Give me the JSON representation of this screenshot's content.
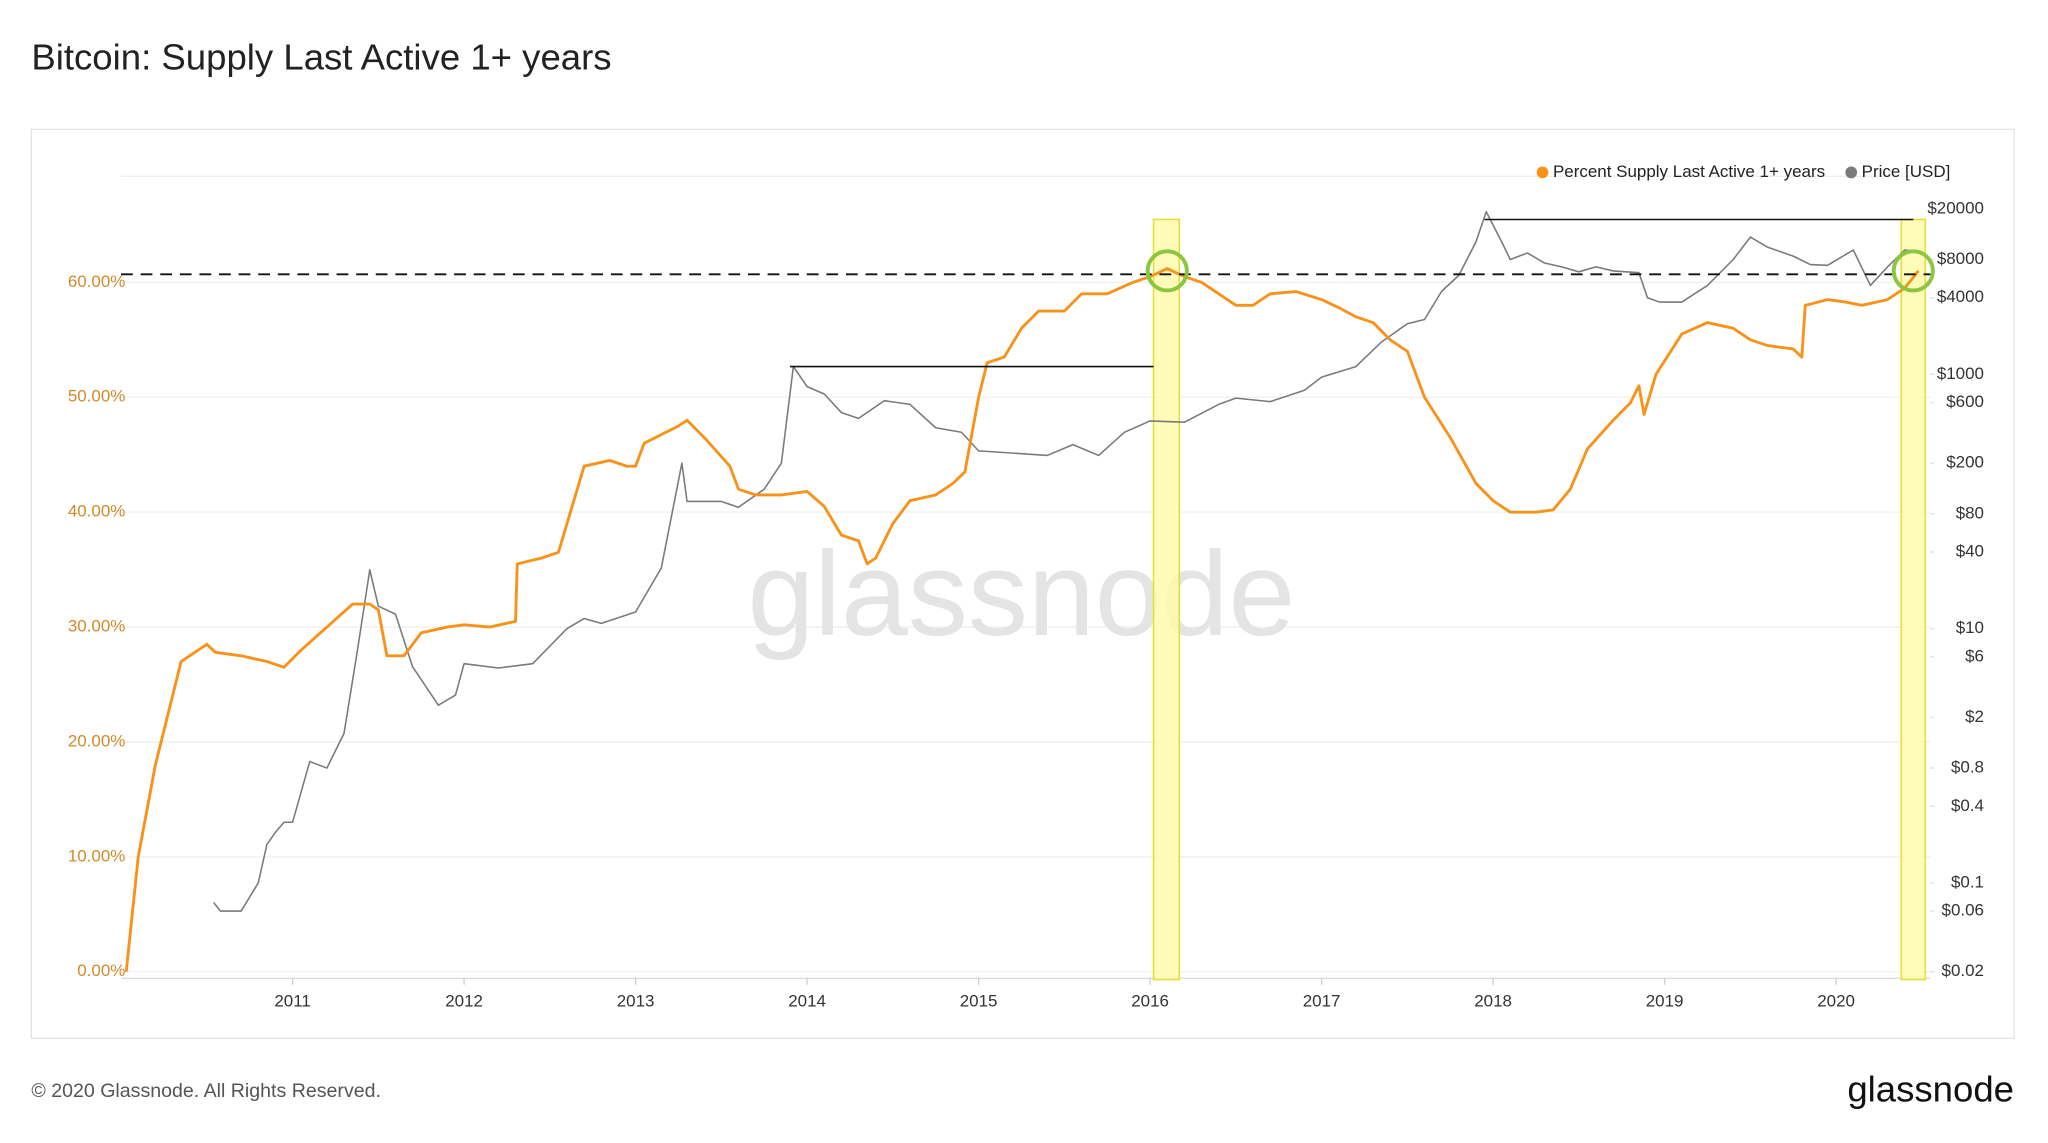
{
  "chart_data": {
    "type": "line",
    "title": "Bitcoin: Supply Last Active 1+ years",
    "watermark": "glassnode",
    "xlim": [
      2010,
      2020.55
    ],
    "xticks": [
      2011,
      2012,
      2013,
      2014,
      2015,
      2016,
      2017,
      2018,
      2019,
      2020
    ],
    "ylim": [
      0,
      69
    ],
    "yticks": [
      {
        "value": 0,
        "label": "0.00%"
      },
      {
        "value": 10,
        "label": "10.00%"
      },
      {
        "value": 20,
        "label": "20.00%"
      },
      {
        "value": 30,
        "label": "30.00%"
      },
      {
        "value": 40,
        "label": "40.00%"
      },
      {
        "value": 50,
        "label": "50.00%"
      },
      {
        "value": 60,
        "label": "60.00%"
      }
    ],
    "y2lim": [
      0.02,
      34400
    ],
    "y2log": true,
    "y2ticks": [
      {
        "value": 20000,
        "label": "$20000"
      },
      {
        "value": 8000,
        "label": "$8000"
      },
      {
        "value": 4000,
        "label": "$4000"
      },
      {
        "value": 1000,
        "label": "$1000"
      },
      {
        "value": 600,
        "label": "$600"
      },
      {
        "value": 200,
        "label": "$200"
      },
      {
        "value": 80,
        "label": "$80"
      },
      {
        "value": 40,
        "label": "$40"
      },
      {
        "value": 10,
        "label": "$10"
      },
      {
        "value": 6,
        "label": "$6"
      },
      {
        "value": 2,
        "label": "$2"
      },
      {
        "value": 0.8,
        "label": "$0.8"
      },
      {
        "value": 0.4,
        "label": "$0.4"
      },
      {
        "value": 0.1,
        "label": "$0.1"
      },
      {
        "value": 0.06,
        "label": "$0.06"
      },
      {
        "value": 0.02,
        "label": "$0.02"
      }
    ],
    "grid": true,
    "legend": "top-right",
    "series": [
      {
        "name": "Percent Supply Last Active 1+ years",
        "color": "#f7931a",
        "x": [
          2010.03,
          2010.1,
          2010.2,
          2010.3,
          2010.35,
          2010.5,
          2010.55,
          2010.7,
          2010.85,
          2010.95,
          2011.05,
          2011.2,
          2011.35,
          2011.45,
          2011.5,
          2011.55,
          2011.65,
          2011.75,
          2011.9,
          2012.0,
          2012.15,
          2012.3,
          2012.31,
          2012.45,
          2012.55,
          2012.6,
          2012.7,
          2012.85,
          2012.95,
          2013.0,
          2013.05,
          2013.25,
          2013.3,
          2013.4,
          2013.55,
          2013.6,
          2013.7,
          2013.85,
          2014.0,
          2014.1,
          2014.2,
          2014.3,
          2014.35,
          2014.4,
          2014.5,
          2014.6,
          2014.75,
          2014.85,
          2014.92,
          2015.0,
          2015.05,
          2015.15,
          2015.25,
          2015.35,
          2015.5,
          2015.6,
          2015.75,
          2015.9,
          2016.0,
          2016.1,
          2016.2,
          2016.3,
          2016.4,
          2016.5,
          2016.6,
          2016.7,
          2016.85,
          2017.0,
          2017.1,
          2017.2,
          2017.3,
          2017.4,
          2017.5,
          2017.6,
          2017.75,
          2017.9,
          2018.0,
          2018.1,
          2018.25,
          2018.35,
          2018.45,
          2018.55,
          2018.7,
          2018.8,
          2018.85,
          2018.88,
          2018.95,
          2019.1,
          2019.25,
          2019.4,
          2019.5,
          2019.6,
          2019.75,
          2019.8,
          2019.82,
          2019.95,
          2020.05,
          2020.15,
          2020.3,
          2020.4,
          2020.48
        ],
        "values": [
          0,
          10,
          18,
          24,
          27,
          28.5,
          27.8,
          27.5,
          27,
          26.5,
          28,
          30,
          32,
          32,
          31.5,
          27.5,
          27.5,
          29.5,
          30,
          30.2,
          30,
          30.5,
          35.5,
          36,
          36.5,
          39,
          44,
          44.5,
          44,
          44,
          46,
          47.5,
          48,
          46.5,
          44,
          42,
          41.5,
          41.5,
          41.8,
          40.5,
          38,
          37.5,
          35.5,
          36,
          39,
          41,
          41.5,
          42.5,
          43.5,
          50,
          53,
          53.5,
          56,
          57.5,
          57.5,
          59,
          59,
          60,
          60.5,
          61.2,
          60.5,
          60,
          59,
          58,
          58,
          59,
          59.2,
          58.5,
          57.8,
          57,
          56.5,
          55,
          54,
          50,
          46.5,
          42.5,
          41,
          40,
          40,
          40.2,
          42,
          45.5,
          48,
          49.5,
          51,
          48.5,
          52,
          55.5,
          56.5,
          56,
          55,
          54.5,
          54.2,
          53.5,
          58,
          58.5,
          58.3,
          58,
          58.5,
          59.5,
          61
        ]
      },
      {
        "name": "Price [USD]",
        "color": "#7a7a7a",
        "axis": "y2",
        "x": [
          2010.54,
          2010.58,
          2010.7,
          2010.8,
          2010.85,
          2010.9,
          2010.95,
          2011.0,
          2011.1,
          2011.2,
          2011.3,
          2011.38,
          2011.45,
          2011.5,
          2011.6,
          2011.7,
          2011.85,
          2011.95,
          2012.0,
          2012.2,
          2012.4,
          2012.6,
          2012.7,
          2012.8,
          2013.0,
          2013.15,
          2013.27,
          2013.3,
          2013.5,
          2013.6,
          2013.75,
          2013.85,
          2013.92,
          2014.0,
          2014.1,
          2014.2,
          2014.3,
          2014.45,
          2014.6,
          2014.75,
          2014.9,
          2015.0,
          2015.2,
          2015.4,
          2015.55,
          2015.7,
          2015.85,
          2016.0,
          2016.2,
          2016.4,
          2016.5,
          2016.7,
          2016.9,
          2017.0,
          2017.2,
          2017.35,
          2017.5,
          2017.6,
          2017.7,
          2017.8,
          2017.9,
          2017.96,
          2018.05,
          2018.1,
          2018.2,
          2018.3,
          2018.4,
          2018.5,
          2018.6,
          2018.7,
          2018.85,
          2018.9,
          2018.97,
          2019.1,
          2019.25,
          2019.4,
          2019.5,
          2019.6,
          2019.75,
          2019.85,
          2019.95,
          2020.1,
          2020.2,
          2020.3,
          2020.4,
          2020.5
        ],
        "values": [
          0.07,
          0.06,
          0.06,
          0.1,
          0.2,
          0.25,
          0.3,
          0.3,
          0.9,
          0.8,
          1.5,
          7,
          29,
          15,
          13,
          5,
          2.5,
          3,
          5.3,
          4.9,
          5.3,
          10,
          12,
          11,
          13.5,
          30,
          200,
          100,
          100,
          90,
          125,
          200,
          1150,
          800,
          700,
          500,
          450,
          620,
          580,
          380,
          350,
          250,
          240,
          230,
          280,
          230,
          350,
          430,
          420,
          580,
          650,
          610,
          750,
          950,
          1150,
          1800,
          2500,
          2700,
          4500,
          6000,
          11000,
          19000,
          11000,
          8000,
          9000,
          7500,
          7000,
          6400,
          7000,
          6500,
          6300,
          4000,
          3700,
          3700,
          5000,
          8000,
          12000,
          10000,
          8500,
          7300,
          7200,
          9500,
          5000,
          7000,
          9500,
          9200
        ]
      }
    ],
    "annotations": {
      "dashed_line": 60.7,
      "highlights": [
        {
          "x": [
            2016.02,
            2016.17
          ]
        },
        {
          "x": [
            2020.38,
            2020.52
          ]
        }
      ],
      "circles": [
        {
          "x": 2016.1,
          "y": 61
        },
        {
          "x": 2020.45,
          "y": 61
        }
      ],
      "price_levels": [
        {
          "x": [
            2013.9,
            2016.02
          ],
          "value": 1150
        },
        {
          "x": [
            2017.95,
            2020.45
          ],
          "value": 16500
        }
      ]
    }
  },
  "footer": {
    "copyright": "© 2020 Glassnode. All Rights Reserved.",
    "logo": "glassnode"
  }
}
